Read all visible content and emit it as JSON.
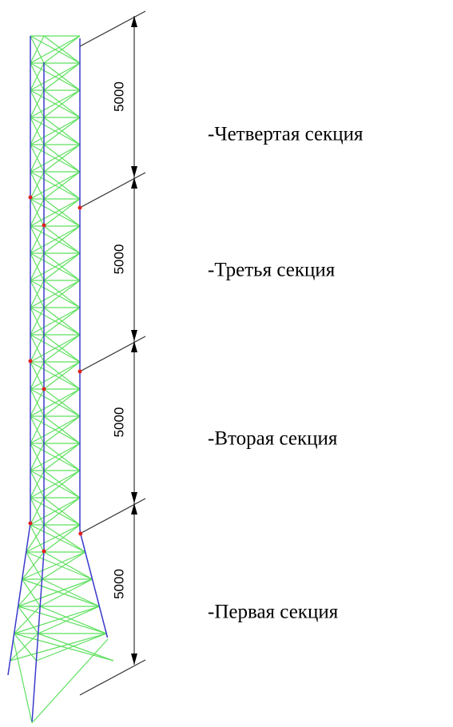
{
  "sections": [
    {
      "dimension": 5000,
      "label": "-Четвертая секция"
    },
    {
      "dimension": 5000,
      "label": "-Третья секция"
    },
    {
      "dimension": 5000,
      "label": "-Вторая секция"
    },
    {
      "dimension": 5000,
      "label": "-Первая секция"
    }
  ]
}
